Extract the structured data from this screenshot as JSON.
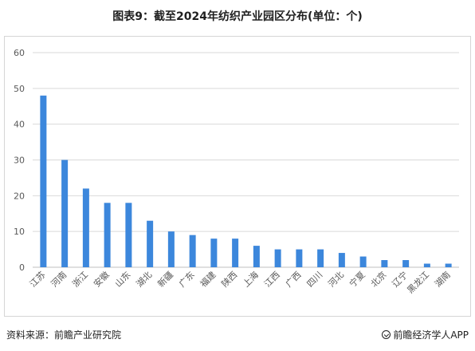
{
  "title": "图表9：截至2024年纺织产业园区分布(单位：个)",
  "footer": {
    "source": "资料来源：前瞻产业研究院",
    "credit": "前瞻经济学人APP",
    "credit_icon": "circle-check-icon"
  },
  "colors": {
    "bar": "#3c87dc",
    "grid": "#d9d9d9",
    "axis": "#bfbfbf"
  },
  "chart_data": {
    "type": "bar",
    "title": "图表9：截至2024年纺织产业园区分布(单位：个)",
    "xlabel": "",
    "ylabel": "",
    "categories": [
      "江苏",
      "河南",
      "浙江",
      "安徽",
      "山东",
      "湖北",
      "新疆",
      "广东",
      "福建",
      "陕西",
      "上海",
      "江西",
      "广西",
      "四川",
      "河北",
      "宁夏",
      "北京",
      "辽宁",
      "黑龙江",
      "湖南"
    ],
    "values": [
      48,
      30,
      22,
      18,
      18,
      13,
      10,
      9,
      8,
      8,
      6,
      5,
      5,
      5,
      4,
      3,
      2,
      2,
      1,
      1
    ],
    "ylim": [
      0,
      60
    ],
    "yticks": [
      "0",
      "10",
      "20",
      "30",
      "40",
      "50",
      "60"
    ],
    "grid": true,
    "legend": "none"
  }
}
